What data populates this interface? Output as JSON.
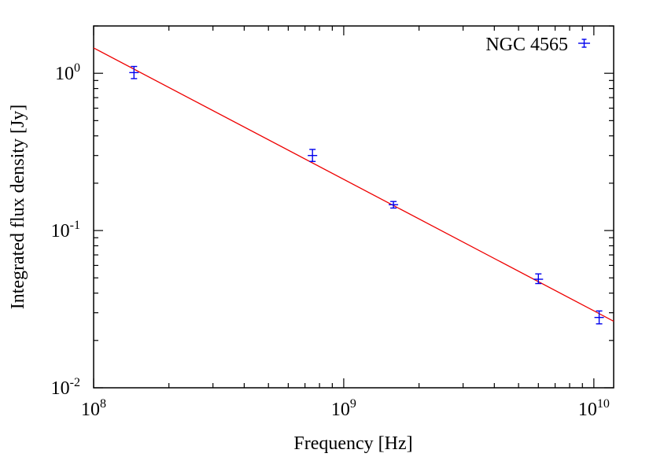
{
  "chart_data": {
    "type": "scatter",
    "xlabel": "Frequency [Hz]",
    "ylabel": "Integrated flux density [Jy]",
    "x_scale": "log",
    "y_scale": "log",
    "xlim": [
      100000000,
      12000000000
    ],
    "ylim": [
      0.01,
      2.0
    ],
    "grid": false,
    "legend_position": "top-right",
    "x_ticks": [
      {
        "value": 100000000,
        "base": "10",
        "exp": "8"
      },
      {
        "value": 1000000000,
        "base": "10",
        "exp": "9"
      },
      {
        "value": 10000000000,
        "base": "10",
        "exp": "10"
      }
    ],
    "y_ticks": [
      {
        "value": 0.01,
        "base": "10",
        "exp": "-2"
      },
      {
        "value": 0.1,
        "base": "10",
        "exp": "-1"
      },
      {
        "value": 1,
        "base": "10",
        "exp": "0"
      }
    ],
    "series": [
      {
        "name": "NGC 4565",
        "kind": "errorbar",
        "color": "#0000ee",
        "points": [
          {
            "x": 145000000,
            "y": 1.01,
            "yerr_low": 0.085,
            "yerr_high": 0.095
          },
          {
            "x": 750000000,
            "y": 0.3,
            "yerr_low": 0.025,
            "yerr_high": 0.028
          },
          {
            "x": 1580000000,
            "y": 0.146,
            "yerr_low": 0.007,
            "yerr_high": 0.007
          },
          {
            "x": 6000000000,
            "y": 0.049,
            "yerr_low": 0.003,
            "yerr_high": 0.004
          },
          {
            "x": 10500000000,
            "y": 0.028,
            "yerr_low": 0.0025,
            "yerr_high": 0.0028
          }
        ]
      },
      {
        "kind": "fit-line",
        "color": "#ee0000",
        "points": [
          {
            "x": 100000000,
            "y": 1.45
          },
          {
            "x": 12000000000,
            "y": 0.0265
          }
        ]
      }
    ]
  }
}
